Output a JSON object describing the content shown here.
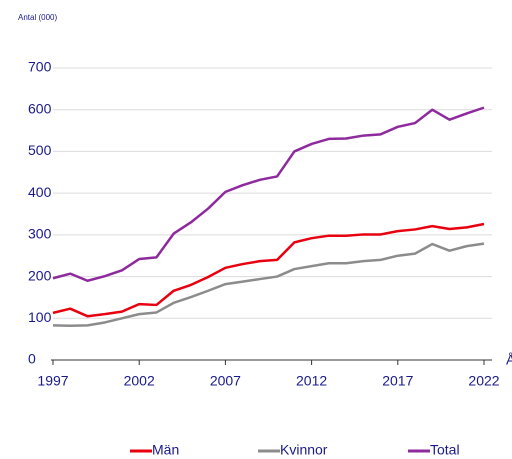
{
  "chart_data": {
    "type": "line",
    "ylabel": "Antal (000)",
    "xlabel": "År",
    "x": [
      1997,
      1998,
      1999,
      2000,
      2001,
      2002,
      2003,
      2004,
      2005,
      2006,
      2007,
      2008,
      2009,
      2010,
      2011,
      2012,
      2013,
      2014,
      2015,
      2016,
      2017,
      2018,
      2019,
      2020,
      2021,
      2022
    ],
    "series": [
      {
        "name": "Män",
        "color": "#e8000f",
        "values": [
          113,
          123,
          105,
          110,
          116,
          134,
          132,
          166,
          180,
          199,
          221,
          230,
          237,
          240,
          282,
          292,
          298,
          298,
          301,
          301,
          309,
          313,
          321,
          314,
          318,
          326
        ]
      },
      {
        "name": "Kvinnor",
        "color": "#8c8c8c",
        "values": [
          83,
          82,
          83,
          90,
          100,
          110,
          114,
          137,
          151,
          166,
          182,
          188,
          194,
          200,
          218,
          225,
          232,
          232,
          237,
          240,
          250,
          255,
          278,
          262,
          273,
          279
        ]
      },
      {
        "name": "Total",
        "color": "#8e2a9e",
        "values": [
          196,
          207,
          190,
          201,
          215,
          242,
          246,
          303,
          330,
          363,
          403,
          419,
          432,
          440,
          500,
          518,
          530,
          531,
          538,
          541,
          559,
          568,
          600,
          576,
          591,
          605
        ]
      }
    ],
    "xlim": [
      1997,
      2022
    ],
    "xticks": [
      1997,
      2002,
      2007,
      2012,
      2017,
      2022
    ],
    "ylim": [
      0,
      700
    ],
    "yticks": [
      0,
      100,
      200,
      300,
      400,
      500,
      600,
      700
    ],
    "grid": true
  }
}
